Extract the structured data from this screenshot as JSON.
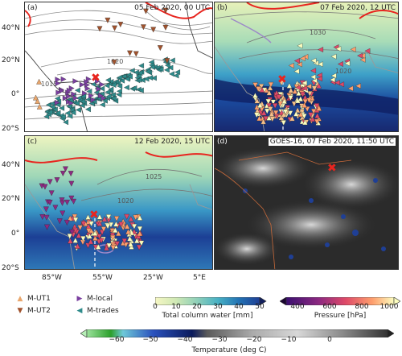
{
  "panels": [
    {
      "label": "(a)",
      "title": "05 Feb 2020, 00 UTC",
      "contour_labels": [
        "1020",
        "1015"
      ]
    },
    {
      "label": "(b)",
      "title": "07 Feb 2020, 12 UTC",
      "contour_labels": [
        "1030",
        "1020"
      ]
    },
    {
      "label": "(c)",
      "title": "12 Feb 2020, 15 UTC",
      "contour_labels": [
        "1025",
        "1020"
      ]
    },
    {
      "label": "(d)",
      "title": "GOES-16, 07 Feb 2020, 11:50 UTC",
      "contour_labels": []
    }
  ],
  "lat_ticks": [
    "40°N",
    "20°N",
    "0°",
    "20°S"
  ],
  "lon_ticks": [
    "85°W",
    "55°W",
    "25°W",
    "5°E"
  ],
  "legend": [
    {
      "label": "M-UT1",
      "marker": "triangle-up",
      "color": "#e9a66c"
    },
    {
      "label": "M-UT2",
      "marker": "triangle-down",
      "color": "#a0522d"
    },
    {
      "label": "M-local",
      "marker": "triangle-right",
      "color": "#7b3fa0"
    },
    {
      "label": "M-trades",
      "marker": "triangle-left",
      "color": "#2e8b8b"
    }
  ],
  "colorbars": [
    {
      "label": "Total column water [mm]",
      "ticks": [
        "0",
        "10",
        "20",
        "30",
        "40",
        "50"
      ],
      "colors": [
        "#f6f7c4",
        "#cfe8b4",
        "#8fd0b9",
        "#48b1c4",
        "#2373b4",
        "#1f3f95",
        "#111f5e"
      ]
    },
    {
      "label": "Pressure [hPa]",
      "ticks": [
        "400",
        "600",
        "800",
        "1000"
      ],
      "colors": [
        "#3b0f70",
        "#8c2981",
        "#de4968",
        "#fe9f6d",
        "#fcfdbf"
      ]
    },
    {
      "label": "Temperature (deg C)",
      "ticks": [
        "−60",
        "−50",
        "−40",
        "−30",
        "−20",
        "−10",
        "0"
      ],
      "colors": [
        "#2ca02c",
        "#6ec8d8",
        "#2a52be",
        "#0a1a5c",
        "#9a9a9a",
        "#cfcfcf",
        "#444444"
      ]
    }
  ],
  "symbols": {
    "cross": "✖",
    "cross_color": "#e8251f"
  }
}
